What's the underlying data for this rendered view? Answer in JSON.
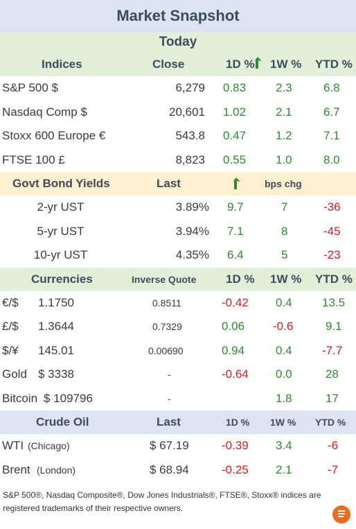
{
  "title": "Market Snapshot",
  "today_label": "Today",
  "indices": {
    "headers": [
      "Indices",
      "Close",
      "1D %",
      "1W %",
      "YTD %"
    ],
    "rows": [
      {
        "name": "S&P 500  $",
        "close": "6,279",
        "d1": "0.83",
        "w1": "2.3",
        "ytd": "6.8"
      },
      {
        "name": "Nasdaq Comp  $",
        "close": "20,601",
        "d1": "1.02",
        "w1": "2.1",
        "ytd": "6.7"
      },
      {
        "name": "Stoxx 600 Europe  €",
        "close": "543.8",
        "d1": "0.47",
        "w1": "1.2",
        "ytd": "7.1"
      },
      {
        "name": "FTSE 100 £",
        "close": "8,823",
        "d1": "0.55",
        "w1": "1.0",
        "ytd": "8.0"
      }
    ]
  },
  "bonds": {
    "headers": [
      "Govt Bond Yields",
      "Last",
      "bps chg"
    ],
    "rows": [
      {
        "name": "2-yr UST",
        "last": "3.89%",
        "d1": "9.7",
        "w1": "7",
        "ytd": "-36"
      },
      {
        "name": "5-yr UST",
        "last": "3.94%",
        "d1": "7.1",
        "w1": "8",
        "ytd": "-45"
      },
      {
        "name": "10-yr UST",
        "last": "4.35%",
        "d1": "6.4",
        "w1": "5",
        "ytd": "-23"
      }
    ]
  },
  "currencies": {
    "headers": [
      "Currencies",
      "Inverse Quote",
      "1D %",
      "1W %",
      "YTD %"
    ],
    "rows": [
      {
        "name": "€/$",
        "value": "1.1750",
        "inverse": "0.8511",
        "d1": "-0.42",
        "w1": "0.4",
        "ytd": "13.5"
      },
      {
        "name": "£/$",
        "value": "1.3644",
        "inverse": "0.7329",
        "d1": "0.06",
        "w1": "-0.6",
        "ytd": "9.1"
      },
      {
        "name": "$/¥",
        "value": "145.01",
        "inverse": "0.00690",
        "d1": "0.94",
        "w1": "0.4",
        "ytd": "-7.7"
      },
      {
        "name": "Gold",
        "value": "$ 3338",
        "inverse": "-",
        "d1": "-0.64",
        "w1": "0.0",
        "ytd": "28"
      },
      {
        "name": "Bitcoin",
        "value": "$ 109796",
        "inverse": "-",
        "d1": "",
        "w1": "1.8",
        "ytd": "17"
      }
    ]
  },
  "crude": {
    "headers": [
      "Crude Oil",
      "Last",
      "1D %",
      "1W %",
      "YTD %"
    ],
    "rows": [
      {
        "name": "WTI",
        "loc": "(Chicago)",
        "last": "$ 67.19",
        "d1": "-0.39",
        "w1": "3.4",
        "ytd": "-6"
      },
      {
        "name": "Brent",
        "loc": "(London)",
        "last": "$ 68.94",
        "d1": "-0.25",
        "w1": "2.1",
        "ytd": "-7"
      }
    ]
  },
  "footer": "S&P 500®, Nasdaq Composite®, Dow Jones Industrials®, FTSE®, Stoxx® indices are registered trademarks of their respective owners.",
  "colors": {
    "positive": "#2e8b2e",
    "negative": "#d42020",
    "header_blue": "#dce3f2",
    "header_green": "#e2f0d9",
    "header_yellow": "#fdf0cf"
  },
  "icons": [
    "arrow-up-icon",
    "logo-icon"
  ]
}
